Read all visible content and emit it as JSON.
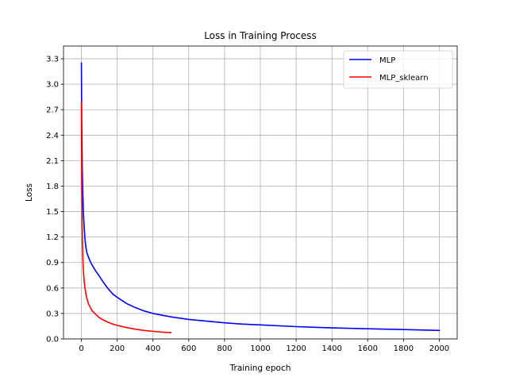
{
  "chart_data": {
    "type": "line",
    "title": "Loss in Training Process",
    "xlabel": "Training epoch",
    "ylabel": "Loss",
    "xlim": [
      -100,
      2100
    ],
    "ylim": [
      0,
      3.45
    ],
    "xticks": [
      0,
      200,
      400,
      600,
      800,
      1000,
      1200,
      1400,
      1600,
      1800,
      2000
    ],
    "yticks": [
      0.0,
      0.3,
      0.6,
      0.9,
      1.2,
      1.5,
      1.8,
      2.1,
      2.4,
      2.7,
      3.0,
      3.3
    ],
    "xtick_labels": [
      "0",
      "200",
      "400",
      "600",
      "800",
      "1000",
      "1200",
      "1400",
      "1600",
      "1800",
      "2000"
    ],
    "ytick_labels": [
      "0.0",
      "0.3",
      "0.6",
      "0.9",
      "1.2",
      "1.5",
      "1.8",
      "2.1",
      "2.4",
      "2.7",
      "3.0",
      "3.3"
    ],
    "grid": true,
    "legend_position": "top-right",
    "series": [
      {
        "name": "MLP",
        "color": "#0000ff",
        "x": [
          0,
          2,
          5,
          8,
          12,
          16,
          20,
          25,
          30,
          40,
          50,
          60,
          80,
          100,
          125,
          150,
          175,
          200,
          250,
          300,
          350,
          400,
          450,
          500,
          600,
          700,
          800,
          900,
          1000,
          1200,
          1400,
          1600,
          1800,
          2000
        ],
        "y": [
          3.25,
          2.55,
          2.0,
          1.7,
          1.45,
          1.3,
          1.18,
          1.08,
          1.02,
          0.96,
          0.91,
          0.87,
          0.8,
          0.74,
          0.66,
          0.59,
          0.53,
          0.49,
          0.42,
          0.37,
          0.33,
          0.3,
          0.28,
          0.26,
          0.23,
          0.21,
          0.19,
          0.175,
          0.165,
          0.145,
          0.13,
          0.12,
          0.11,
          0.1
        ]
      },
      {
        "name": "MLP_sklearn",
        "color": "#ff0000",
        "x": [
          0,
          1,
          2,
          3,
          4,
          6,
          8,
          10,
          13,
          16,
          20,
          25,
          30,
          40,
          50,
          60,
          70,
          80,
          100,
          125,
          150,
          175,
          200,
          250,
          300,
          350,
          400,
          450,
          500
        ],
        "y": [
          2.78,
          2.2,
          1.8,
          1.55,
          1.35,
          1.1,
          0.95,
          0.85,
          0.75,
          0.67,
          0.6,
          0.53,
          0.48,
          0.41,
          0.37,
          0.33,
          0.31,
          0.29,
          0.25,
          0.22,
          0.195,
          0.175,
          0.16,
          0.135,
          0.115,
          0.1,
          0.09,
          0.08,
          0.075
        ]
      }
    ]
  }
}
